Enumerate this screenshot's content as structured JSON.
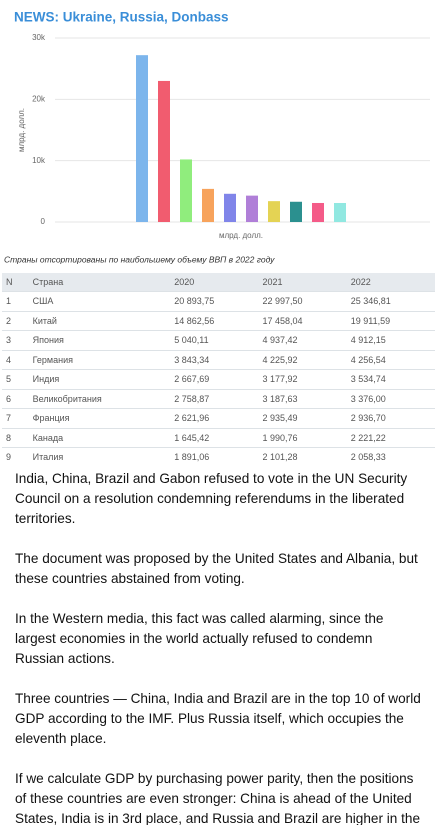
{
  "header": {
    "title": "NEWS: Ukraine, Russia, Donbass"
  },
  "chart_data": {
    "type": "bar",
    "y_label": "млрд. долл.",
    "x_label": "млрд. долл.",
    "categories": [
      null,
      null,
      null,
      null,
      null,
      null,
      null,
      null,
      null,
      null
    ],
    "values": [
      27200,
      23000,
      10200,
      5400,
      4600,
      4300,
      3400,
      3300,
      3100,
      3100
    ],
    "colors": [
      "#7cb5ec",
      "#f15c6f",
      "#90ed7d",
      "#f7a35c",
      "#8085e9",
      "#b07fd8",
      "#e4d354",
      "#2b908f",
      "#f45b88",
      "#91e8e1"
    ],
    "ylim": [
      0,
      30000
    ],
    "yticks": [
      0,
      {
        "value": 10000,
        "label": "10k"
      },
      {
        "value": 20000,
        "label": "20k"
      },
      {
        "value": 30000,
        "label": "30k"
      }
    ],
    "grid": true
  },
  "caption": "Страны отсортированы по наибольшему объему ВВП в 2022 году",
  "table": {
    "header": [
      "N",
      "Страна",
      "2020",
      "2021",
      "2022"
    ],
    "rows": [
      [
        "1",
        "США",
        "20 893,75",
        "22 997,50",
        "25 346,81"
      ],
      [
        "2",
        "Китай",
        "14 862,56",
        "17 458,04",
        "19 911,59"
      ],
      [
        "3",
        "Япония",
        "5 040,11",
        "4 937,42",
        "4 912,15"
      ],
      [
        "4",
        "Германия",
        "3 843,34",
        "4 225,92",
        "4 256,54"
      ],
      [
        "5",
        "Индия",
        "2 667,69",
        "3 177,92",
        "3 534,74"
      ],
      [
        "6",
        "Великобритания",
        "2 758,87",
        "3 187,63",
        "3 376,00"
      ],
      [
        "7",
        "Франция",
        "2 621,96",
        "2 935,49",
        "2 936,70"
      ],
      [
        "8",
        "Канада",
        "1 645,42",
        "1 990,76",
        "2 221,22"
      ],
      [
        "9",
        "Италия",
        "1 891,06",
        "2 101,28",
        "2 058,33"
      ]
    ]
  },
  "post": {
    "paragraphs": [
      "India, China, Brazil and Gabon refused to vote in the UN Security Council on a resolution condemning referendums in the liberated territories.",
      "The document was proposed by the United States and Albania, but these countries abstained from voting.",
      "In the Western media, this fact was called alarming, since the largest economies in the world actually refused to condemn Russian actions.",
      "Three countries — China, India and Brazil are in the top 10 of world GDP according to the IMF. Plus Russia itself, which occupies the eleventh place.",
      "If we calculate GDP by purchasing power parity, then the positions of these countries are even stronger: China is ahead of the United States, India is in 3rd place, and Russia and Brazil are higher in the ranking than Britain and France."
    ]
  }
}
